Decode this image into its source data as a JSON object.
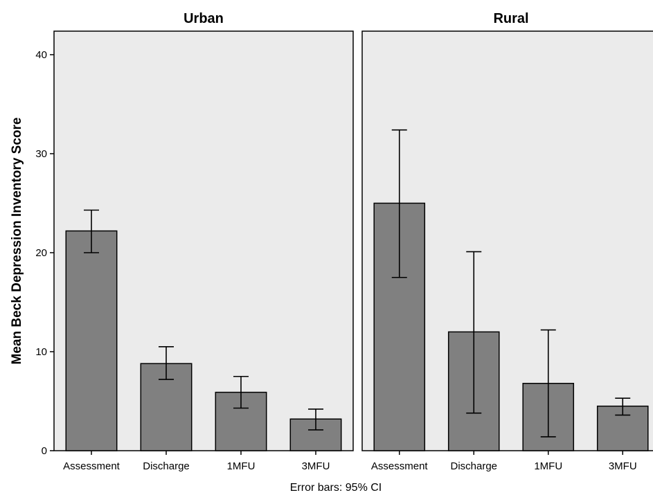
{
  "chart_data": {
    "type": "bar",
    "ylabel": "Mean Beck Depression Inventory Score",
    "ylim": [
      0,
      40
    ],
    "yticks": [
      0,
      10,
      20,
      30,
      40
    ],
    "grid": false,
    "footnote": "Error bars: 95% CI",
    "colors": {
      "bar": "#808080",
      "panel_bg": "#ebebeb",
      "stroke": "#000000"
    },
    "panels": [
      {
        "title": "Urban",
        "categories": [
          "Assessment",
          "Discharge",
          "1MFU",
          "3MFU"
        ],
        "values": [
          22.2,
          8.8,
          5.9,
          3.2
        ],
        "ci_low": [
          20.0,
          7.2,
          4.3,
          2.1
        ],
        "ci_high": [
          24.3,
          10.5,
          7.5,
          4.2
        ]
      },
      {
        "title": "Rural",
        "categories": [
          "Assessment",
          "Discharge",
          "1MFU",
          "3MFU"
        ],
        "values": [
          25.0,
          12.0,
          6.8,
          4.5
        ],
        "ci_low": [
          17.5,
          3.8,
          1.4,
          3.6
        ],
        "ci_high": [
          32.4,
          20.1,
          12.2,
          5.3
        ]
      }
    ]
  }
}
